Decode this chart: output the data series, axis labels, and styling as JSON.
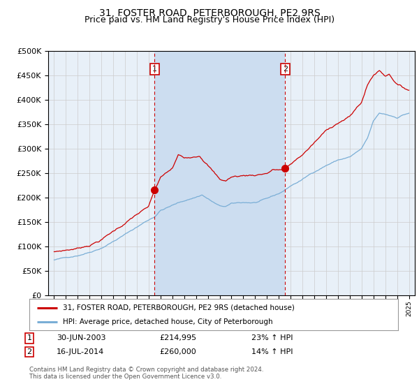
{
  "title": "31, FOSTER ROAD, PETERBOROUGH, PE2 9RS",
  "subtitle": "Price paid vs. HM Land Registry's House Price Index (HPI)",
  "background_color": "#ffffff",
  "plot_bg_color": "#e8f0f8",
  "shade_color": "#ccddf0",
  "legend_label_red": "31, FOSTER ROAD, PETERBOROUGH, PE2 9RS (detached house)",
  "legend_label_blue": "HPI: Average price, detached house, City of Peterborough",
  "sale1_date": "30-JUN-2003",
  "sale1_price": 214995,
  "sale1_hpi_pct": "23%",
  "sale1_year": 2003.5,
  "sale2_date": "16-JUL-2014",
  "sale2_price": 260000,
  "sale2_hpi_pct": "14%",
  "sale2_year": 2014.54,
  "footer_line1": "Contains HM Land Registry data © Crown copyright and database right 2024.",
  "footer_line2": "This data is licensed under the Open Government Licence v3.0.",
  "ylim_min": 0,
  "ylim_max": 500000,
  "red_line_color": "#cc0000",
  "blue_line_color": "#7aaed6",
  "grid_color": "#cccccc",
  "title_fontsize": 10,
  "subtitle_fontsize": 9
}
